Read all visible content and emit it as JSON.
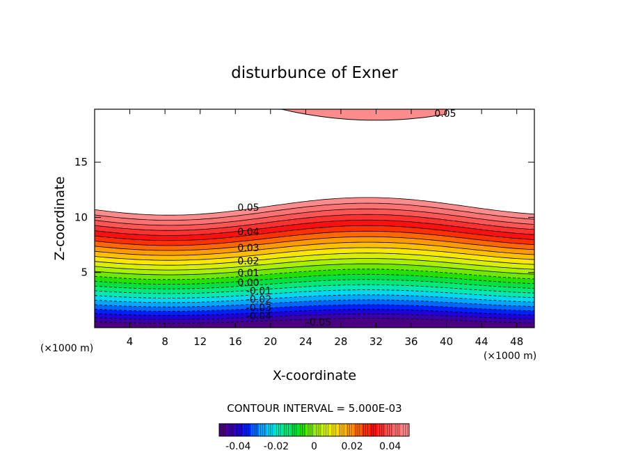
{
  "chart_data": {
    "type": "filled-contour",
    "title": "disturbunce of Exner",
    "xlabel": "X-coordinate",
    "ylabel": "Z-coordinate",
    "x_unit_left": "(×1000 m)",
    "x_unit_right": "(×1000 m)",
    "xlim": [
      0,
      50
    ],
    "ylim": [
      0,
      19.8
    ],
    "x_ticks": [
      4,
      8,
      12,
      16,
      20,
      24,
      28,
      32,
      36,
      40,
      44,
      48
    ],
    "x_tick_labels": [
      "4",
      "8",
      "12",
      "16",
      "20",
      "24",
      "28",
      "32",
      "36",
      "40",
      "44",
      "48"
    ],
    "y_ticks": [
      5,
      10,
      15
    ],
    "y_tick_labels": [
      "5",
      "10",
      "15"
    ],
    "contour_interval_text": "CONTOUR INTERVAL = 5.000E-03",
    "contour_interval": 0.005,
    "value_range": [
      -0.05,
      0.05
    ],
    "contour_labels": [
      "0.05",
      "0.04",
      "0.03",
      "0.02",
      "0.01",
      "0.00",
      "-0.01",
      "-0.02",
      "-0.03",
      "-0.04",
      "-0.05",
      "0.05"
    ],
    "colorbar_tick_labels": [
      "-0.04",
      "-0.02",
      "0",
      "0.02",
      "0.04"
    ],
    "colorbar_ticks": [
      -0.04,
      -0.02,
      0,
      0.02,
      0.04
    ],
    "lower_band": {
      "base_height": [
        0.3,
        11
      ],
      "wave_amplitude": [
        0.2,
        0.8
      ],
      "crest_x": 31,
      "wavelength": 45
    },
    "upper_cap": {
      "bottom_height_at_32": 18.8,
      "top": 19.8,
      "x_range": [
        18,
        40
      ]
    },
    "colors": {
      "palette": [
        "#4b0082",
        "#3a00a8",
        "#2000d8",
        "#0020ff",
        "#0066ff",
        "#00a6ff",
        "#00d8f0",
        "#00e8b4",
        "#00e878",
        "#00e040",
        "#22e000",
        "#6ee800",
        "#a8f000",
        "#d8f000",
        "#f8e800",
        "#ffc000",
        "#ff9a00",
        "#ff6800",
        "#ff3000",
        "#ff1010",
        "#ff3030",
        "#ff5555",
        "#ff7272",
        "#ff8c8c"
      ],
      "line": "#000000"
    }
  }
}
